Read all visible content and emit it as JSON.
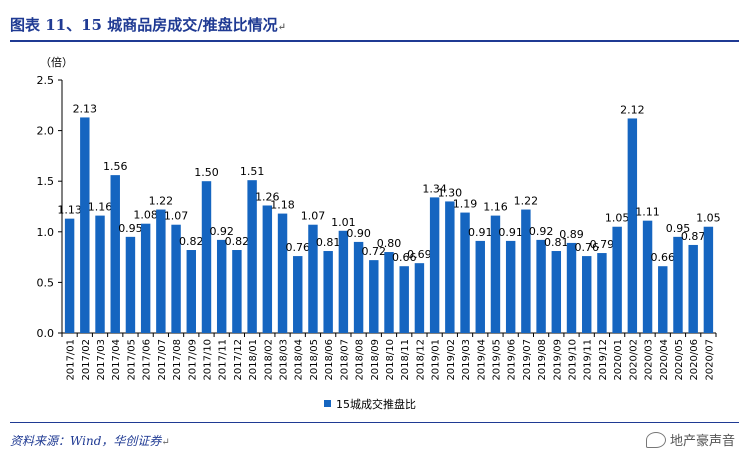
{
  "figure": {
    "title": "图表 11、15 城商品房成交/推盘比情况",
    "source": "资料来源：Wind，华创证券",
    "watermark": "地产豪声音",
    "watermark_icon": "wechat-icon",
    "return_mark": "↵",
    "accent_color": "#1F3A93"
  },
  "chart_data": {
    "type": "bar",
    "title": "",
    "ylabel": "（倍）",
    "xlabel": "",
    "ylim": [
      0,
      2.5
    ],
    "yticks": [
      "0.0",
      "0.5",
      "1.0",
      "1.5",
      "2.0",
      "2.5"
    ],
    "bar_color": "#1565C0",
    "categories": [
      "2017/01",
      "2017/02",
      "2017/03",
      "2017/04",
      "2017/05",
      "2017/06",
      "2017/07",
      "2017/08",
      "2017/09",
      "2017/10",
      "2017/11",
      "2017/12",
      "2018/01",
      "2018/02",
      "2018/03",
      "2018/04",
      "2018/05",
      "2018/06",
      "2018/07",
      "2018/08",
      "2018/09",
      "2018/10",
      "2018/11",
      "2018/12",
      "2019/01",
      "2019/02",
      "2019/03",
      "2019/04",
      "2019/05",
      "2019/06",
      "2019/07",
      "2019/08",
      "2019/09",
      "2019/10",
      "2019/11",
      "2019/12",
      "2020/01",
      "2020/02",
      "2020/03",
      "2020/04",
      "2020/05",
      "2020/06",
      "2020/07"
    ],
    "series": [
      {
        "name": "15城成交推盘比",
        "values": [
          1.13,
          2.13,
          1.16,
          1.56,
          0.95,
          1.08,
          1.22,
          1.07,
          0.82,
          1.5,
          0.92,
          0.82,
          1.51,
          1.26,
          1.18,
          0.76,
          1.07,
          0.81,
          1.01,
          0.9,
          0.72,
          0.8,
          0.66,
          0.69,
          1.34,
          1.3,
          1.19,
          0.91,
          1.16,
          0.91,
          1.22,
          0.92,
          0.81,
          0.89,
          0.76,
          0.79,
          1.05,
          2.12,
          1.11,
          0.66,
          0.95,
          0.87,
          1.05
        ],
        "labels": [
          "1.13",
          "2.13",
          "1.16",
          "1.56",
          "0.95",
          "1.08",
          "1.22",
          "1.07",
          "0.82",
          "1.50",
          "0.92",
          "0.82",
          "1.51",
          "1.26",
          "1.18",
          "0.76",
          "1.07",
          "0.81",
          "1.01",
          "0.90",
          "0.72",
          "0.80",
          "0.66",
          "0.69",
          "1.34",
          "1.30",
          "1.19",
          "0.91",
          "1.16",
          "0.91",
          "1.22",
          "0.92",
          "0.81",
          "0.89",
          "0.76",
          "0.79",
          "1.05",
          "2.12",
          "1.11",
          "0.66",
          "0.95",
          "0.87",
          "1.05"
        ]
      }
    ],
    "legend": {
      "position": "bottom-center"
    }
  }
}
